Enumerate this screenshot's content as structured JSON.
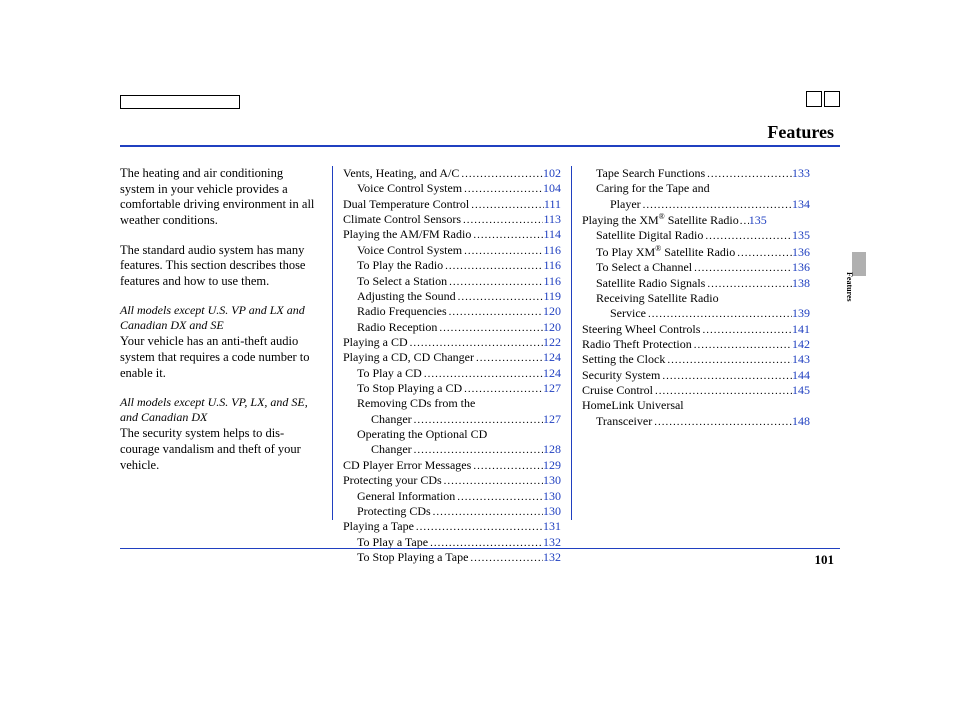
{
  "title": "Features",
  "sideLabel": "Features",
  "pageNumber": "101",
  "intro": {
    "p1": "The heating and air conditioning system in your vehicle provides a comfortable driving environment in all weather conditions.",
    "p2": "The standard audio system has many features. This section describes those features and how to use them.",
    "note1": "All models except U.S. VP and LX and Canadian DX and SE",
    "p3": "Your vehicle has an anti-theft audio system that requires a code number to enable it.",
    "note2": "All models except U.S. VP, LX, and SE, and Canadian DX",
    "p4": "The security system helps to dis- courage vandalism and theft of your vehicle."
  },
  "toc_col2": [
    {
      "label": "Vents, Heating, and A/C",
      "page": "102",
      "indent": 0
    },
    {
      "label": "Voice Control System",
      "page": "104",
      "indent": 1
    },
    {
      "label": "Dual Temperature Control",
      "page": "111",
      "indent": 0
    },
    {
      "label": "Climate Control Sensors",
      "page": "113",
      "indent": 0
    },
    {
      "label": "Playing the AM/FM Radio",
      "page": "114",
      "indent": 0
    },
    {
      "label": "Voice Control System",
      "page": "116",
      "indent": 1
    },
    {
      "label": "To Play the Radio",
      "page": "116",
      "indent": 1
    },
    {
      "label": "To Select a Station",
      "page": "116",
      "indent": 1
    },
    {
      "label": "Adjusting the Sound",
      "page": "119",
      "indent": 1
    },
    {
      "label": "Radio Frequencies",
      "page": "120",
      "indent": 1
    },
    {
      "label": "Radio Reception",
      "page": "120",
      "indent": 1
    },
    {
      "label": "Playing a CD",
      "page": "122",
      "indent": 0
    },
    {
      "label": "Playing a CD, CD Changer",
      "page": "124",
      "indent": 0
    },
    {
      "label": "To Play a CD",
      "page": "124",
      "indent": 1
    },
    {
      "label": "To Stop Playing a CD",
      "page": "127",
      "indent": 1
    },
    {
      "label": "Removing CDs from the",
      "cont": "Changer",
      "page": "127",
      "indent": 1
    },
    {
      "label": "Operating the Optional CD",
      "cont": "Changer",
      "page": "128",
      "indent": 1
    },
    {
      "label": "CD Player Error Messages",
      "page": "129",
      "indent": 0
    },
    {
      "label": "Protecting your CDs",
      "page": "130",
      "indent": 0
    },
    {
      "label": "General Information",
      "page": "130",
      "indent": 1
    },
    {
      "label": "Protecting CDs",
      "page": "130",
      "indent": 1
    },
    {
      "label": "Playing a Tape",
      "page": "131",
      "indent": 0
    },
    {
      "label": "To Play a Tape",
      "page": "132",
      "indent": 1
    },
    {
      "label": "To Stop Playing a Tape",
      "page": "132",
      "indent": 1
    }
  ],
  "toc_col3": [
    {
      "label": "Tape Search Functions",
      "page": "133",
      "indent": 1
    },
    {
      "label": "Caring for the Tape and",
      "cont": "Player",
      "page": "134",
      "indent": 1
    },
    {
      "label": "Playing the XM® Satellite Radio",
      "page": "135",
      "indent": 0,
      "tight": true
    },
    {
      "label": "Satellite Digital Radio",
      "page": "135",
      "indent": 1
    },
    {
      "label": "To Play XM® Satellite Radio",
      "page": "136",
      "indent": 1
    },
    {
      "label": "To Select a Channel",
      "page": "136",
      "indent": 1
    },
    {
      "label": "Satellite Radio Signals",
      "page": "138",
      "indent": 1
    },
    {
      "label": "Receiving Satellite Radio",
      "cont": "Service",
      "page": "139",
      "indent": 1
    },
    {
      "label": "Steering Wheel Controls",
      "page": "141",
      "indent": 0
    },
    {
      "label": "Radio Theft Protection",
      "page": "142",
      "indent": 0
    },
    {
      "label": "Setting the Clock",
      "page": "143",
      "indent": 0
    },
    {
      "label": "Security System",
      "page": "144",
      "indent": 0
    },
    {
      "label": "Cruise Control",
      "page": "145",
      "indent": 0
    },
    {
      "label": "HomeLink Universal",
      "cont": "Transceiver",
      "page": "148",
      "indent": 0
    }
  ],
  "colors": {
    "link": "#2040c0",
    "text": "#000000",
    "tab": "#b0b0b0"
  }
}
